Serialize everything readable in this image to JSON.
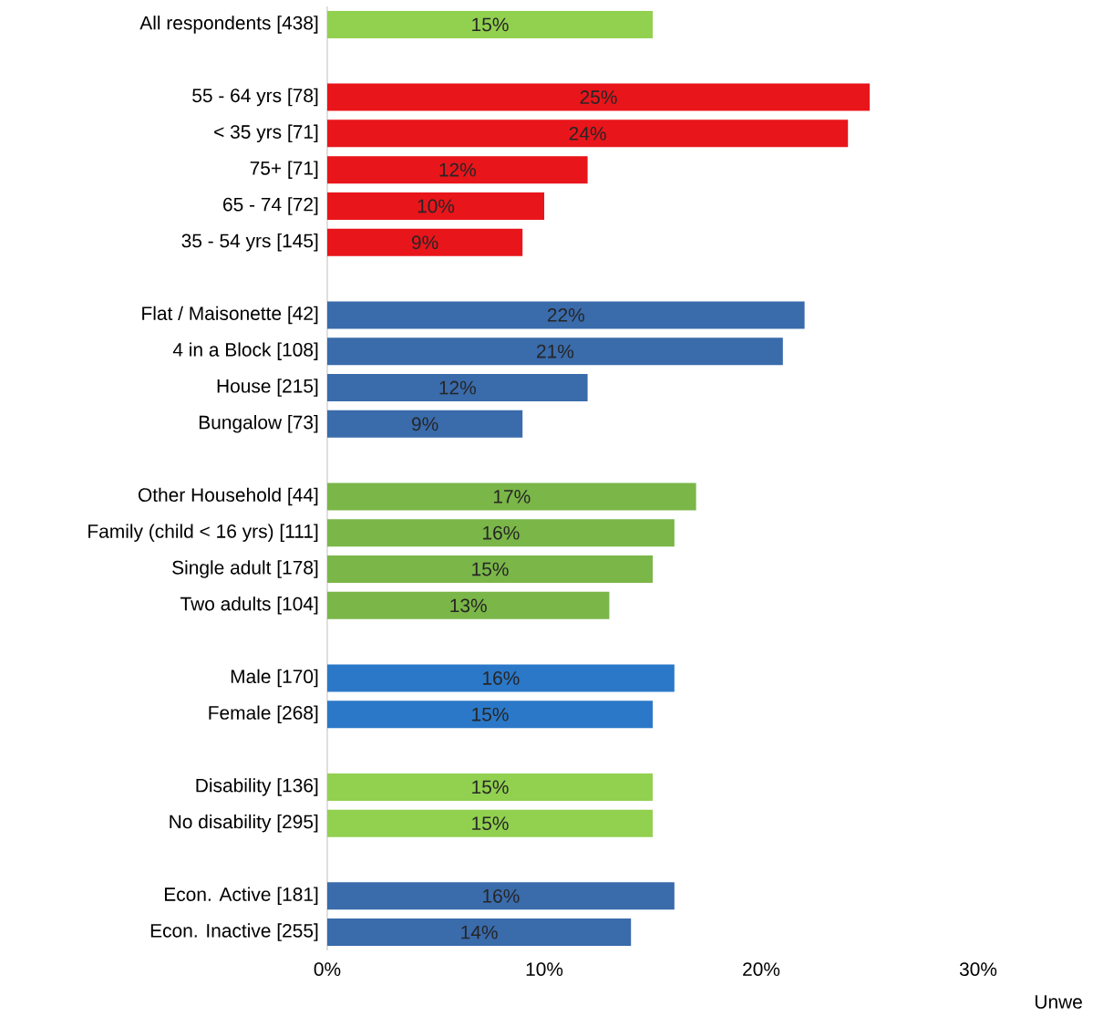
{
  "chart_data": {
    "type": "bar",
    "orientation": "horizontal",
    "categories": [
      "All respondents [438]",
      null,
      "55 - 64 yrs [78]",
      "< 35 yrs [71]",
      "75+ [71]",
      "65 - 74 [72]",
      "35 - 54 yrs [145]",
      null,
      "Flat / Maisonette [42]",
      "4 in a Block [108]",
      "House [215]",
      "Bungalow [73]",
      null,
      "Other Household  [44]",
      "Family (child < 16 yrs) [111]",
      "Single adult [178]",
      "Two adults [104]",
      null,
      "Male [170]",
      "Female [268]",
      null,
      "Disability [136]",
      "No disability [295]",
      null,
      "Econ. Active [181]",
      "Econ. Inactive [255]"
    ],
    "values": [
      15,
      null,
      25,
      24,
      12,
      10,
      9,
      null,
      22,
      21,
      12,
      9,
      null,
      17,
      16,
      15,
      13,
      null,
      16,
      15,
      null,
      15,
      15,
      null,
      16,
      14
    ],
    "value_labels": [
      "15%",
      null,
      "25%",
      "24%",
      "12%",
      "10%",
      "9%",
      null,
      "22%",
      "21%",
      "12%",
      "9%",
      null,
      "17%",
      "16%",
      "15%",
      "13%",
      null,
      "16%",
      "15%",
      null,
      "15%",
      "15%",
      null,
      "16%",
      "14%"
    ],
    "colors": [
      "#92d050",
      null,
      "#e8151b",
      "#e8151b",
      "#e8151b",
      "#e8151b",
      "#e8151b",
      null,
      "#3a6bab",
      "#3a6bab",
      "#3a6bab",
      "#3a6bab",
      null,
      "#7ab648",
      "#7ab648",
      "#7ab648",
      "#7ab648",
      null,
      "#2b78c8",
      "#2b78c8",
      null,
      "#92d050",
      "#92d050",
      null,
      "#3a6bab",
      "#3a6bab"
    ],
    "xlim": [
      0,
      30
    ],
    "xticks": [
      {
        "value": 0,
        "label": "0%"
      },
      {
        "value": 10,
        "label": "10%"
      },
      {
        "value": 20,
        "label": "20%"
      },
      {
        "value": 30,
        "label": "30%"
      }
    ],
    "grid": false,
    "annotations": [
      "Unwe"
    ]
  }
}
